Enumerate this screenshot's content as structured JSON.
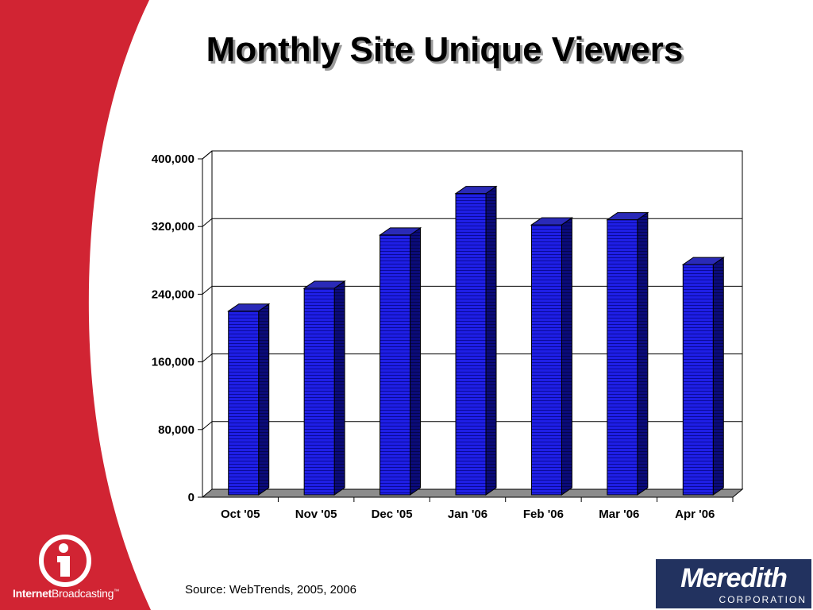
{
  "slide": {
    "title": "Monthly Site Unique Viewers",
    "source": "Source: WebTrends, 2005, 2006",
    "colors": {
      "accent_red": "#d12433",
      "bar_blue": "#1a1ae0",
      "meredith_navy": "#22325f"
    }
  },
  "logos": {
    "internet_broadcasting": {
      "bold": "Internet",
      "rest": "Broadcasting",
      "tm": "™"
    },
    "meredith": {
      "name": "Meredith",
      "sub": "CORPORATION"
    }
  },
  "chart_data": {
    "type": "bar",
    "title": "Monthly Site Unique Viewers",
    "categories": [
      "Oct '05",
      "Nov '05",
      "Dec '05",
      "Jan '06",
      "Feb '06",
      "Mar '06",
      "Apr '06"
    ],
    "values": [
      220000,
      247000,
      310000,
      359000,
      322000,
      328000,
      275000
    ],
    "ylim": [
      0,
      400000
    ],
    "yticks": [
      0,
      80000,
      160000,
      240000,
      320000,
      400000
    ],
    "ytick_labels": [
      "0",
      "80,000",
      "160,000",
      "240,000",
      "320,000",
      "400,000"
    ],
    "grid": true,
    "legend": "none",
    "style": "3d-column"
  }
}
